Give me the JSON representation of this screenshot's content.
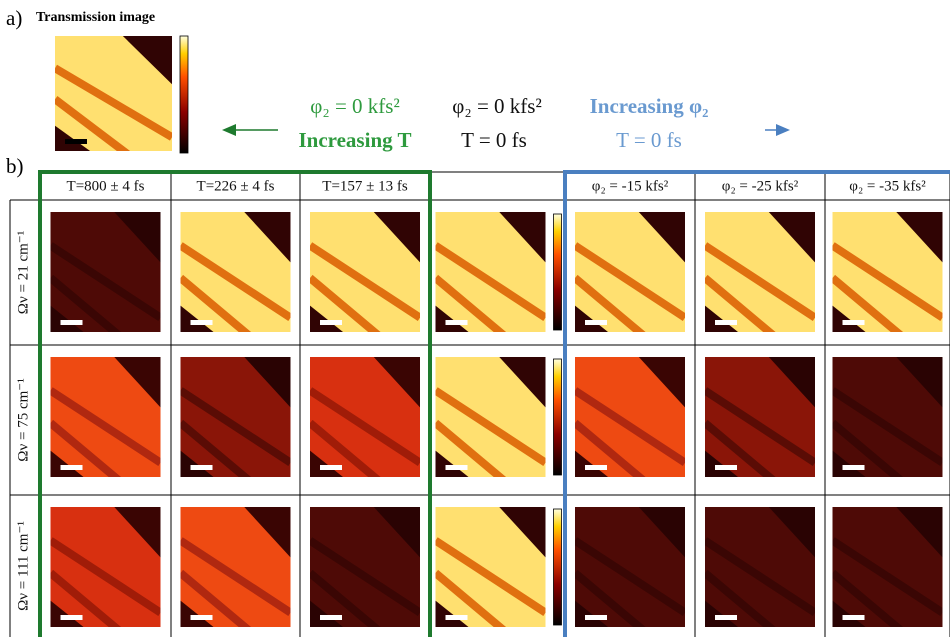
{
  "panel_a": {
    "label": "a)",
    "title": "Transmission image"
  },
  "legend": {
    "temporal": {
      "formula": "φ₂ = 0 kfs²",
      "text": "Increasing T"
    },
    "reference": {
      "formula": "φ₂ = 0 kfs²",
      "text": "T = 0 fs"
    },
    "chirp": {
      "formula": "Increasing φ₂",
      "text": "T = 0 fs"
    }
  },
  "panel_b": {
    "label": "b)",
    "columns_temporal": [
      "T=800 ± 4 fs",
      "T=226 ± 4 fs",
      "T=157 ± 13 fs"
    ],
    "columns_chirp": [
      "φ₂ = -15 kfs²",
      "φ₂ = -25 kfs²",
      "φ₂ = -35 kfs²"
    ],
    "rows": [
      "Ων = 21 cm⁻¹",
      "Ων = 75 cm⁻¹",
      "Ων = 111 cm⁻¹"
    ]
  }
}
